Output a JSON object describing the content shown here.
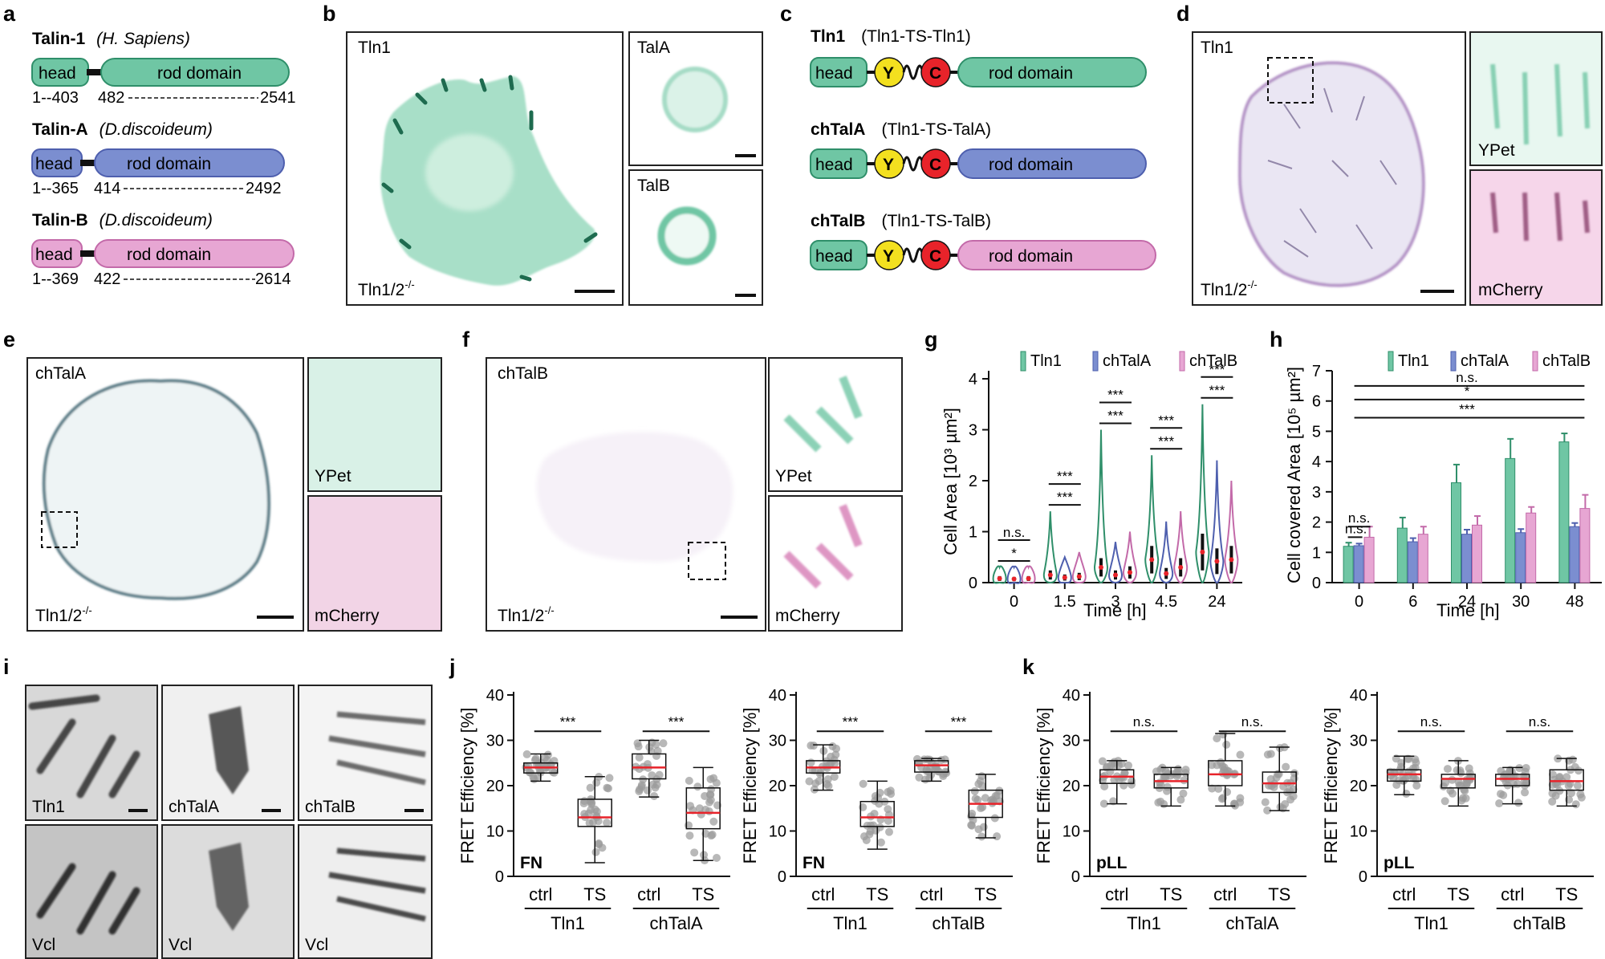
{
  "panel_letters": [
    "a",
    "b",
    "c",
    "d",
    "e",
    "f",
    "g",
    "h",
    "i",
    "j",
    "k"
  ],
  "colors": {
    "tln1": "#6fc6a4",
    "talA": "#7b8ed0",
    "talB": "#e7a6d3",
    "tln1_dark": "#2f8f6a",
    "talA_dark": "#4e5fae",
    "talB_dark": "#c36aa9",
    "Y": "#f3e01f",
    "C": "#e8232a"
  },
  "panel_a": {
    "proteins": [
      {
        "name": "Talin-1",
        "species": "(H. Sapiens)",
        "head": "head",
        "rod": "rod domain",
        "head_range": "1--403",
        "rod_start": "482",
        "rod_end": "2541"
      },
      {
        "name": "Talin-A",
        "species": "(D.discoideum)",
        "head": "head",
        "rod": "rod domain",
        "head_range": "1--365",
        "rod_start": "414",
        "rod_end": "2492"
      },
      {
        "name": "Talin-B",
        "species": "(D.discoideum)",
        "head": "head",
        "rod": "rod domain",
        "head_range": "1--369",
        "rod_start": "422",
        "rod_end": "2614"
      }
    ]
  },
  "panel_b": {
    "main": "Tln1",
    "genotype": "Tln1/2",
    "genotype_sup": "-/-",
    "inset1": "TalA",
    "inset2": "TalB"
  },
  "panel_c": {
    "constructs": [
      {
        "name": "Tln1",
        "detail": "(Tln1-TS-Tln1)",
        "head": "head",
        "y": "Y",
        "c": "C",
        "rod": "rod domain"
      },
      {
        "name": "chTalA",
        "detail": "(Tln1-TS-TalA)",
        "head": "head",
        "y": "Y",
        "c": "C",
        "rod": "rod domain"
      },
      {
        "name": "chTalB",
        "detail": "(Tln1-TS-TalB)",
        "head": "head",
        "y": "Y",
        "c": "C",
        "rod": "rod domain"
      }
    ]
  },
  "panel_d": {
    "main": "Tln1",
    "genotype": "Tln1/2",
    "genotype_sup": "-/-",
    "inset1": "YPet",
    "inset2": "mCherry"
  },
  "panel_e": {
    "main": "chTalA",
    "genotype": "Tln1/2",
    "genotype_sup": "-/-",
    "inset1": "YPet",
    "inset2": "mCherry"
  },
  "panel_f": {
    "main": "chTalB",
    "genotype": "Tln1/2",
    "genotype_sup": "-/-",
    "inset1": "YPet",
    "inset2": "mCherry"
  },
  "panel_i": {
    "top": [
      "Tln1",
      "chTalA",
      "chTalB"
    ],
    "bottom": [
      "Vcl",
      "Vcl",
      "Vcl"
    ]
  },
  "chart_data": [
    {
      "id": "g",
      "type": "violin",
      "xlabel": "Time [h]",
      "ylabel": "Cell Area [10³ µm²]",
      "ylim": [
        0,
        4
      ],
      "yticks": [
        "0",
        "1",
        "2",
        "3",
        "4"
      ],
      "categories": [
        "0",
        "1.5",
        "3",
        "4.5",
        "24"
      ],
      "legend": [
        "Tln1",
        "chTalA",
        "chTalB"
      ],
      "series": [
        {
          "name": "Tln1",
          "medians": [
            0.08,
            0.15,
            0.3,
            0.45,
            0.6
          ],
          "max": [
            0.3,
            1.4,
            3.0,
            2.5,
            3.5
          ]
        },
        {
          "name": "chTalA",
          "medians": [
            0.07,
            0.1,
            0.15,
            0.18,
            0.42
          ],
          "max": [
            0.3,
            0.5,
            0.8,
            1.2,
            2.4
          ]
        },
        {
          "name": "chTalB",
          "medians": [
            0.08,
            0.12,
            0.2,
            0.3,
            0.45
          ],
          "max": [
            0.3,
            0.6,
            1.0,
            1.4,
            2.0
          ]
        }
      ],
      "significance": [
        {
          "time": "0",
          "labels": [
            "*",
            "n.s."
          ]
        },
        {
          "time": "1.5",
          "labels": [
            "***",
            "***"
          ]
        },
        {
          "time": "3",
          "labels": [
            "***",
            "***"
          ]
        },
        {
          "time": "4.5",
          "labels": [
            "***",
            "***"
          ]
        },
        {
          "time": "24",
          "labels": [
            "***",
            "***"
          ]
        }
      ]
    },
    {
      "id": "h",
      "type": "bar",
      "xlabel": "Time [h]",
      "ylabel": "Cell covered Area [10⁵ µm²]",
      "ylim": [
        0,
        7
      ],
      "yticks": [
        "0",
        "1",
        "2",
        "3",
        "4",
        "5",
        "6",
        "7"
      ],
      "categories": [
        "0",
        "6",
        "24",
        "30",
        "48"
      ],
      "legend": [
        "Tln1",
        "chTalA",
        "chTalB"
      ],
      "series": [
        {
          "name": "Tln1",
          "values": [
            1.2,
            1.8,
            3.3,
            4.1,
            4.65
          ],
          "errors": [
            0.12,
            0.35,
            0.6,
            0.65,
            0.28
          ]
        },
        {
          "name": "chTalA",
          "values": [
            1.22,
            1.35,
            1.6,
            1.65,
            1.85
          ],
          "errors": [
            0.07,
            0.12,
            0.15,
            0.12,
            0.12
          ]
        },
        {
          "name": "chTalB",
          "values": [
            1.5,
            1.6,
            1.9,
            2.3,
            2.45
          ],
          "errors": [
            0.35,
            0.25,
            0.3,
            0.2,
            0.45
          ]
        }
      ],
      "significance": [
        "n.s.",
        "*",
        "***",
        "n.s.",
        "n.s."
      ]
    },
    {
      "id": "j1",
      "type": "box",
      "ylabel": "FRET Efficiency [%]",
      "ylim": [
        0,
        40
      ],
      "yticks": [
        "0",
        "10",
        "20",
        "30",
        "40"
      ],
      "substrate": "FN",
      "categories": [
        "ctrl",
        "TS",
        "ctrl",
        "TS"
      ],
      "groups": [
        "Tln1",
        "chTalA"
      ],
      "series": [
        {
          "name": "Tln1 ctrl",
          "q1": 22.8,
          "median": 24,
          "q3": 25,
          "min": 21,
          "max": 27
        },
        {
          "name": "Tln1 TS",
          "q1": 11,
          "median": 13,
          "q3": 17,
          "min": 3,
          "max": 22
        },
        {
          "name": "chTalA ctrl",
          "q1": 21.5,
          "median": 24,
          "q3": 27,
          "min": 17.5,
          "max": 30
        },
        {
          "name": "chTalA TS",
          "q1": 10.5,
          "median": 14,
          "q3": 19.5,
          "min": 3.5,
          "max": 24
        }
      ],
      "significance": [
        "***",
        "***"
      ]
    },
    {
      "id": "j2",
      "type": "box",
      "ylabel": "FRET Efficiency [%]",
      "ylim": [
        0,
        40
      ],
      "yticks": [
        "0",
        "10",
        "20",
        "30",
        "40"
      ],
      "substrate": "FN",
      "categories": [
        "ctrl",
        "TS",
        "ctrl",
        "TS"
      ],
      "groups": [
        "Tln1",
        "chTalB"
      ],
      "series": [
        {
          "name": "Tln1 ctrl",
          "q1": 22.8,
          "median": 24,
          "q3": 25.5,
          "min": 19,
          "max": 29
        },
        {
          "name": "Tln1 TS",
          "q1": 11,
          "median": 13,
          "q3": 16.5,
          "min": 6,
          "max": 21
        },
        {
          "name": "chTalB ctrl",
          "q1": 23,
          "median": 24.5,
          "q3": 25.5,
          "min": 21,
          "max": 26
        },
        {
          "name": "chTalB TS",
          "q1": 13,
          "median": 16,
          "q3": 19,
          "min": 8.5,
          "max": 22.5
        }
      ],
      "significance": [
        "***",
        "***"
      ]
    },
    {
      "id": "k1",
      "type": "box",
      "ylabel": "FRET Efficiency [%]",
      "ylim": [
        0,
        40
      ],
      "yticks": [
        "0",
        "10",
        "20",
        "30",
        "40"
      ],
      "substrate": "pLL",
      "categories": [
        "ctrl",
        "TS",
        "ctrl",
        "TS"
      ],
      "groups": [
        "Tln1",
        "chTalA"
      ],
      "series": [
        {
          "name": "Tln1 ctrl",
          "q1": 20.5,
          "median": 22,
          "q3": 23.5,
          "min": 16,
          "max": 25.5
        },
        {
          "name": "Tln1 TS",
          "q1": 19.5,
          "median": 21,
          "q3": 22.5,
          "min": 15.5,
          "max": 24
        },
        {
          "name": "chTalA ctrl",
          "q1": 20,
          "median": 22.5,
          "q3": 25.5,
          "min": 15.5,
          "max": 31.5
        },
        {
          "name": "chTalA TS",
          "q1": 18.5,
          "median": 20.5,
          "q3": 23,
          "min": 14.5,
          "max": 28.5
        }
      ],
      "significance": [
        "n.s.",
        "n.s."
      ]
    },
    {
      "id": "k2",
      "type": "box",
      "ylabel": "FRET Efficiency [%]",
      "ylim": [
        0,
        40
      ],
      "yticks": [
        "0",
        "10",
        "20",
        "30",
        "40"
      ],
      "substrate": "pLL",
      "categories": [
        "ctrl",
        "TS",
        "ctrl",
        "TS"
      ],
      "groups": [
        "Tln1",
        "chTalB"
      ],
      "series": [
        {
          "name": "Tln1 ctrl",
          "q1": 21,
          "median": 22.5,
          "q3": 23.5,
          "min": 18,
          "max": 26.5
        },
        {
          "name": "Tln1 TS",
          "q1": 19.5,
          "median": 21.5,
          "q3": 22.5,
          "min": 15.5,
          "max": 25.5
        },
        {
          "name": "chTalB ctrl",
          "q1": 20,
          "median": 21.5,
          "q3": 22.5,
          "min": 16,
          "max": 24
        },
        {
          "name": "chTalB TS",
          "q1": 19,
          "median": 21,
          "q3": 23.5,
          "min": 15.5,
          "max": 26
        }
      ],
      "significance": [
        "n.s.",
        "n.s."
      ]
    }
  ]
}
